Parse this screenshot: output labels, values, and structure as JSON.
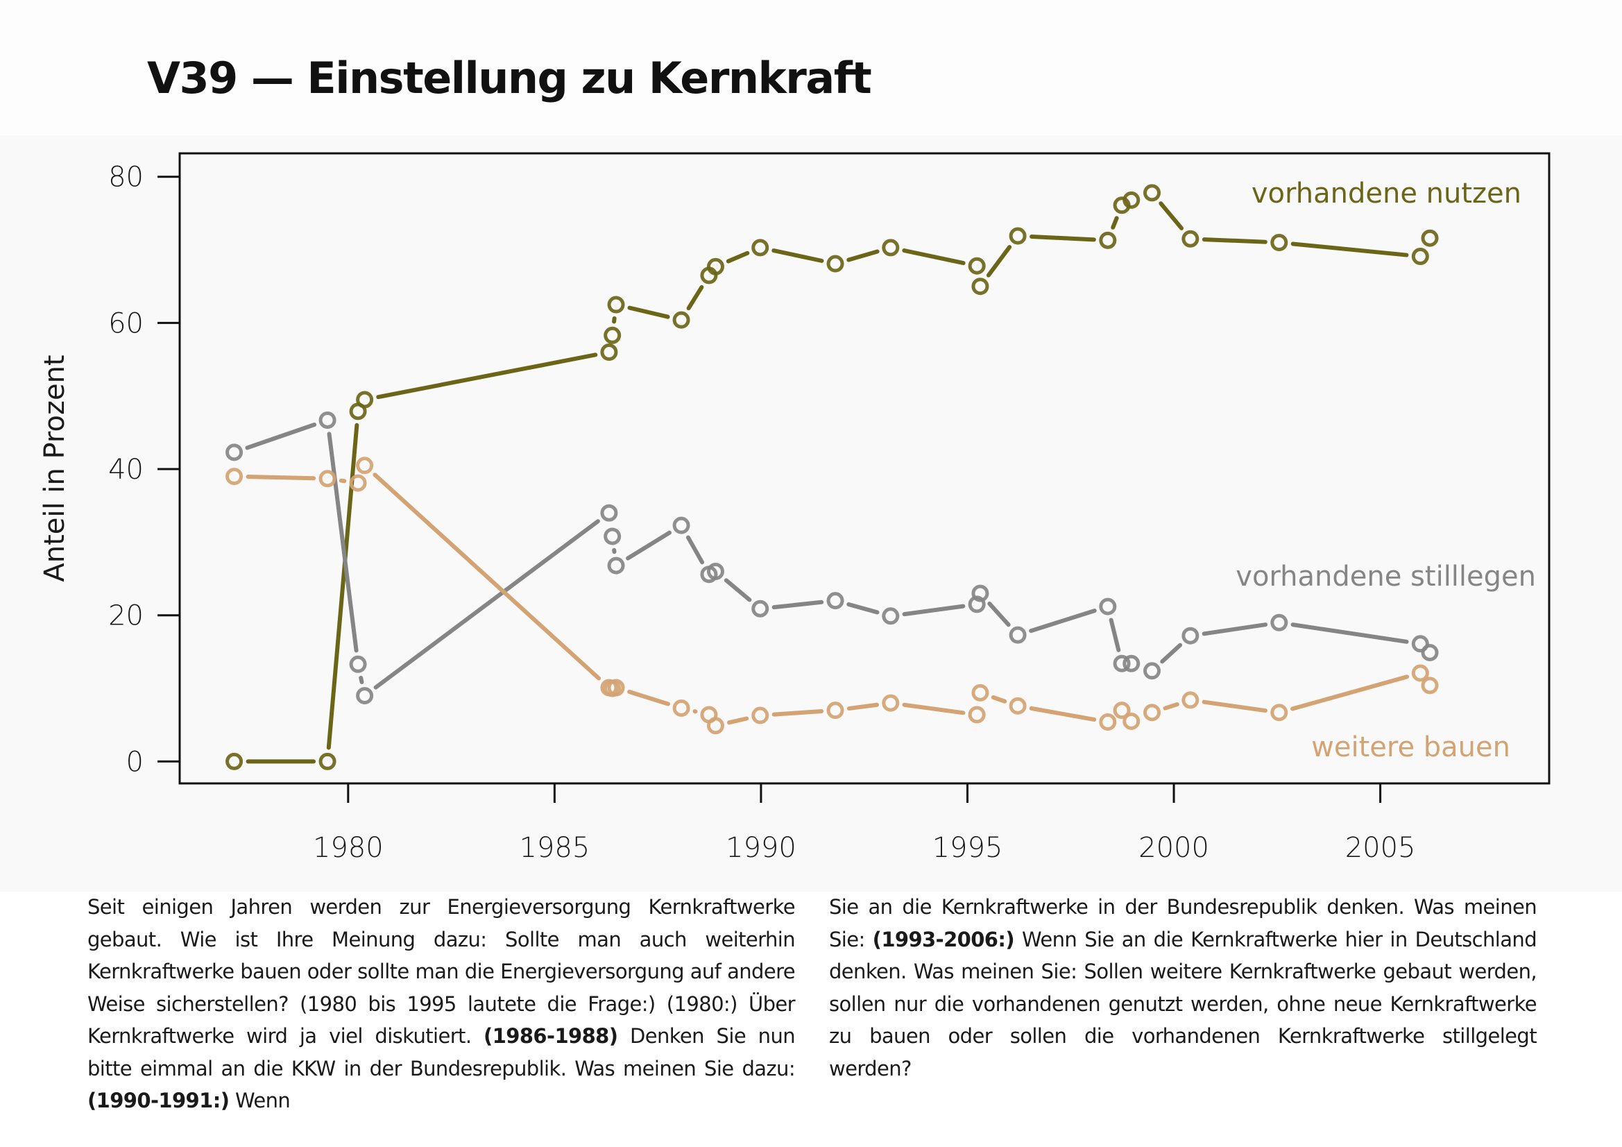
{
  "page": {
    "title": "V39 — Einstellung zu Kernkraft"
  },
  "chart_data": {
    "type": "line",
    "title": "V39 — Einstellung zu Kernkraft",
    "xlabel": "",
    "ylabel": "Anteil in Prozent",
    "xlim": [
      1975.92,
      2009.09
    ],
    "ylim": [
      -3.0,
      83.2
    ],
    "xticks": [
      1980,
      1985,
      1990,
      1995,
      2000,
      2005
    ],
    "yticks": [
      0,
      20,
      40,
      60,
      80
    ],
    "grid": false,
    "legend_placement": "inline-right (labels next to series)",
    "marker": "open-circle",
    "x": [
      1977.24,
      1979.5,
      1980.24,
      1980.4,
      1986.32,
      1986.4,
      1986.49,
      1988.07,
      1988.74,
      1988.9,
      1989.98,
      1991.8,
      1993.14,
      1995.23,
      1995.31,
      1996.22,
      1998.4,
      1998.74,
      1998.97,
      1999.47,
      2000.4,
      2002.55,
      2005.97,
      2006.2
    ],
    "series": [
      {
        "name": "vorhandene nutzen",
        "color": "#6b6518",
        "label_position": "top-right",
        "values": [
          0,
          0,
          47.9,
          49.5,
          56.0,
          58.3,
          62.5,
          60.4,
          66.5,
          67.7,
          70.3,
          68.1,
          70.3,
          67.8,
          65.0,
          71.9,
          71.3,
          76.1,
          76.8,
          77.8,
          71.5,
          71.0,
          69.1,
          71.6
        ]
      },
      {
        "name": "vorhandene stilllegen",
        "color": "#858585",
        "label_position": "middle-right",
        "values": [
          42.3,
          46.7,
          13.3,
          9.0,
          34.0,
          30.8,
          26.8,
          32.3,
          25.6,
          26.0,
          20.9,
          22.0,
          19.9,
          21.5,
          23.0,
          17.3,
          21.2,
          13.4,
          13.4,
          12.4,
          17.2,
          19.0,
          16.1,
          14.9
        ]
      },
      {
        "name": "weitere bauen",
        "color": "#d4a373",
        "label_position": "bottom-right",
        "values": [
          39.0,
          38.7,
          38.1,
          40.5,
          10.1,
          10.0,
          10.1,
          7.3,
          6.4,
          4.9,
          6.3,
          7.0,
          8.0,
          6.4,
          9.4,
          7.6,
          5.4,
          7.0,
          5.5,
          6.7,
          8.4,
          6.7,
          12.1,
          10.4
        ]
      }
    ]
  },
  "notes": {
    "left": [
      {
        "text": "Seit einigen Jahren werden zur Energieversorgung Kernkraftwerke gebaut. Wie ist Ihre Meinung dazu: Sollte man auch weiterhin Kernkraftwerke bauen oder sollte man die Energieversorgung auf andere Weise sicherstellen? (1980 bis 1995 lautete die Frage:) (1980:) Über Kernkraftwerke wird ja viel diskutiert. ",
        "bold": false
      },
      {
        "text": "(1986-1988)",
        "bold": true
      },
      {
        "text": " Denken Sie nun bitte eimmal an die KKW in der Bundesrepublik. Was meinen Sie dazu: ",
        "bold": false
      },
      {
        "text": "(1990-1991:)",
        "bold": true
      },
      {
        "text": " Wenn",
        "bold": false
      }
    ],
    "right": [
      {
        "text": "Sie an die Kernkraftwerke in der Bundesrepublik denken. Was meinen Sie: ",
        "bold": false
      },
      {
        "text": "(1993-2006:)",
        "bold": true
      },
      {
        "text": " Wenn Sie an die Kernkraftwerke hier in Deutschland denken. Was meinen Sie: Sollen weitere Kernkraftwerke gebaut werden, sollen nur die vorhandenen genutzt werden, ohne neue Kernkraftwerke zu bauen oder sollen die vorhandenen Kernkraftwerke stillgelegt werden?",
        "bold": false
      }
    ]
  }
}
